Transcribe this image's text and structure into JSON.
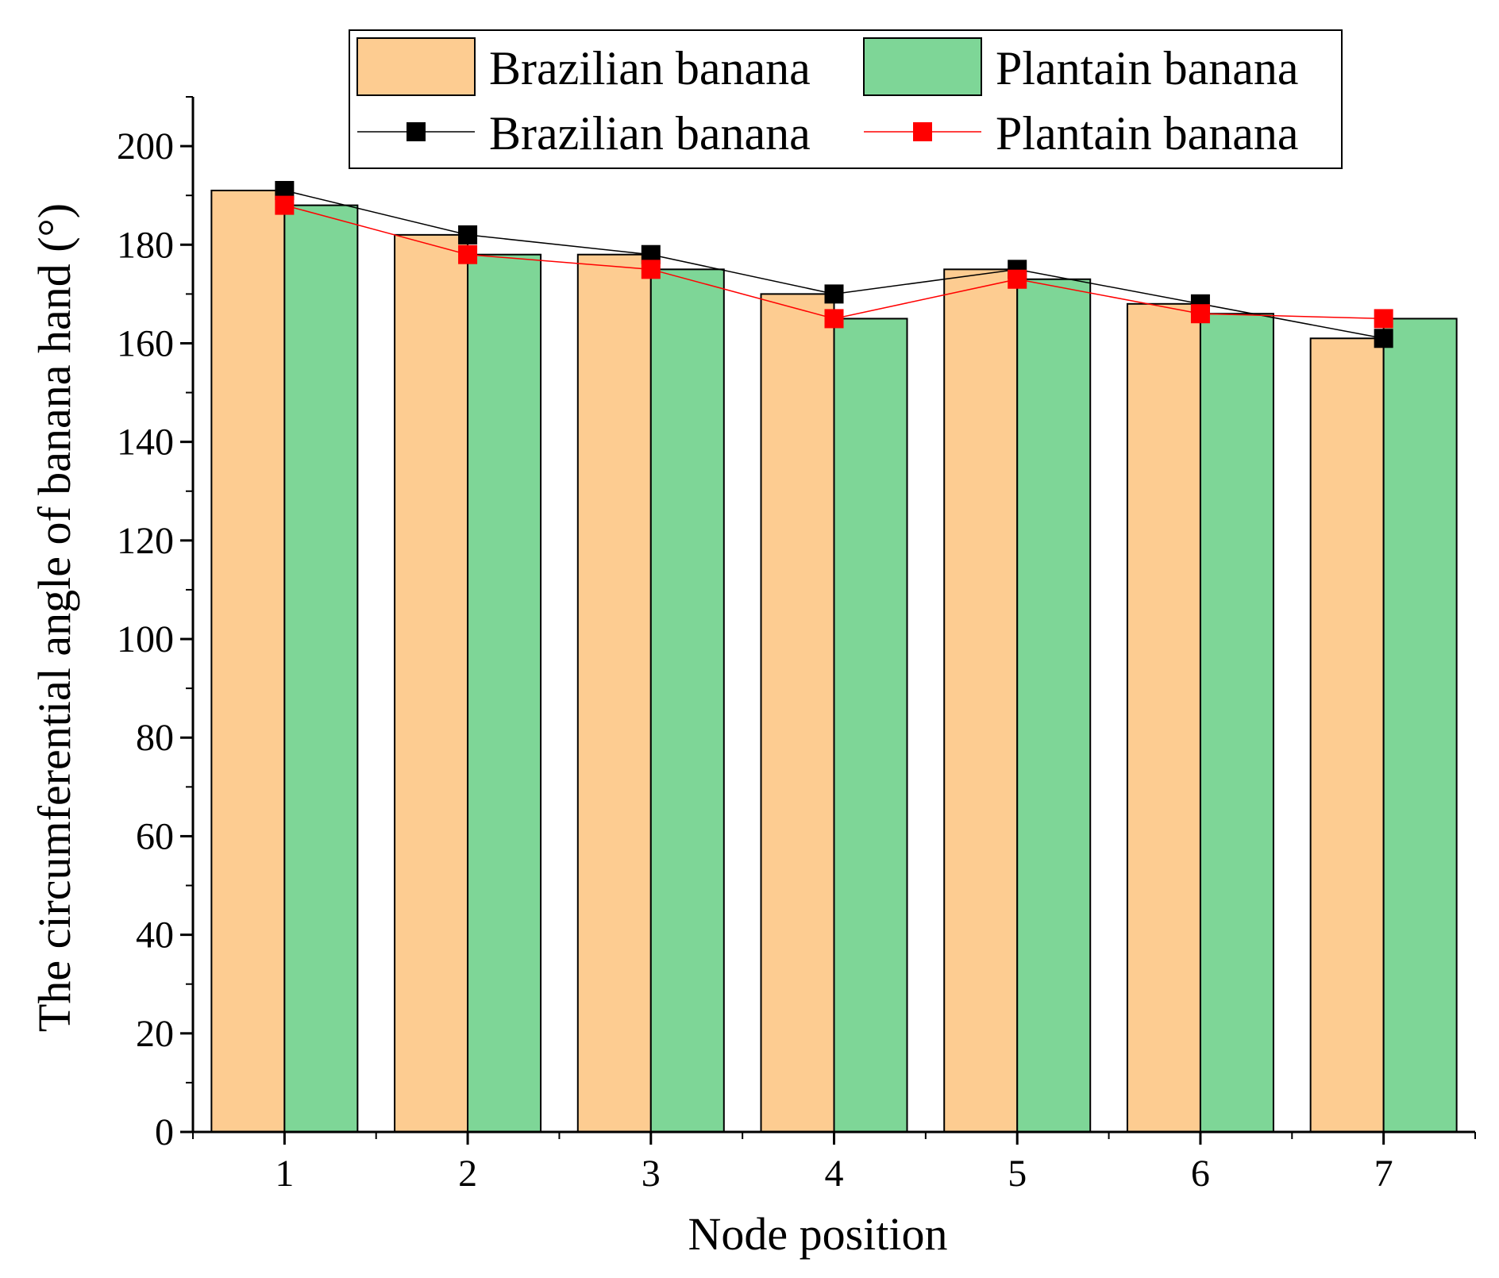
{
  "chart_data": {
    "type": "bar",
    "title": "",
    "xlabel": "Node position",
    "ylabel": "The circumferential angle of banana hand (°)",
    "categories": [
      "1",
      "2",
      "3",
      "4",
      "5",
      "6",
      "7"
    ],
    "ylim": [
      0,
      210
    ],
    "yticks": [
      0,
      20,
      40,
      60,
      80,
      100,
      120,
      140,
      160,
      180,
      200
    ],
    "grid": false,
    "legend_position": "top-center",
    "bar_series": [
      {
        "name": "Brazilian banana",
        "values": [
          191,
          182,
          178,
          170,
          175,
          168,
          161
        ],
        "color": "#fdcc91"
      },
      {
        "name": "Plantain banana",
        "values": [
          188,
          178,
          175,
          165,
          173,
          166,
          165
        ],
        "color": "#7ed697"
      }
    ],
    "line_series": [
      {
        "name": "Brazilian banana",
        "values": [
          191,
          182,
          178,
          170,
          175,
          168,
          161
        ],
        "color": "#000000",
        "marker": "square"
      },
      {
        "name": "Plantain banana",
        "values": [
          188,
          178,
          175,
          165,
          173,
          166,
          165
        ],
        "color": "#ff0000",
        "marker": "square"
      }
    ]
  }
}
